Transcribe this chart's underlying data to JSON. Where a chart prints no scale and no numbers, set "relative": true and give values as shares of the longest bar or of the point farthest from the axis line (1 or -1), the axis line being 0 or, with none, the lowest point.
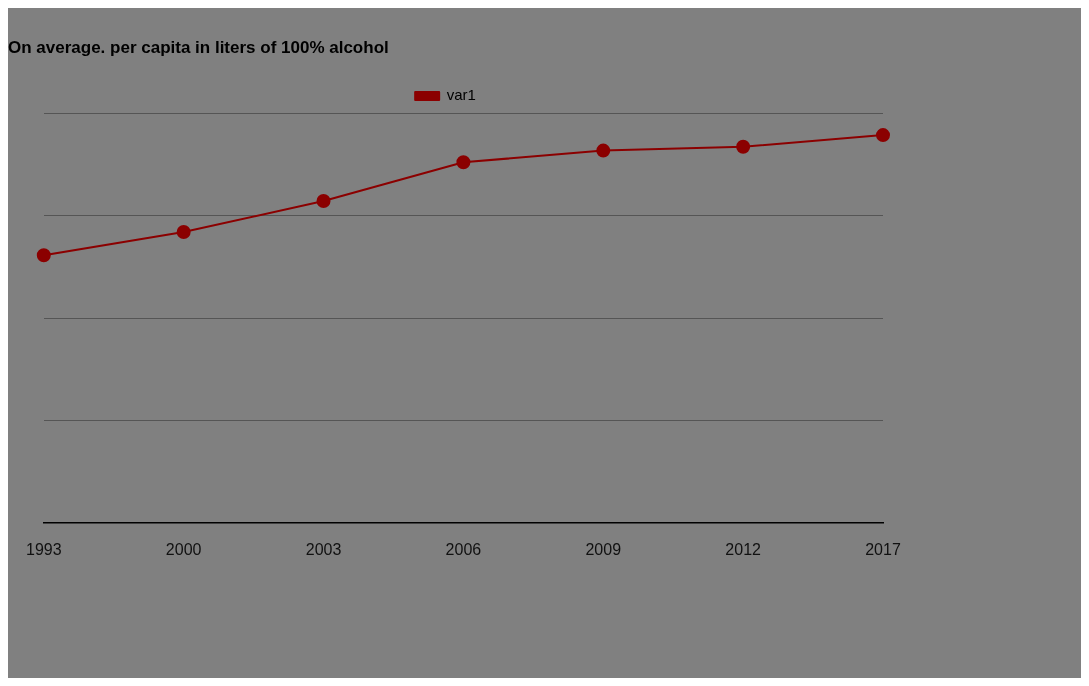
{
  "chart_data": {
    "type": "line",
    "title": "On average. per capita in liters of 100% alcohol",
    "categories": [
      "1993",
      "2000",
      "2003",
      "2006",
      "2009",
      "2012",
      "2017"
    ],
    "series": [
      {
        "name": "var1",
        "color": "#8b0000",
        "values": [
          0.69,
          0.75,
          0.83,
          0.93,
          0.96,
          0.97,
          1
        ]
      }
    ],
    "relative": true,
    "grid": "y",
    "legend": "top",
    "marker": "circle",
    "line_style": "solid"
  }
}
